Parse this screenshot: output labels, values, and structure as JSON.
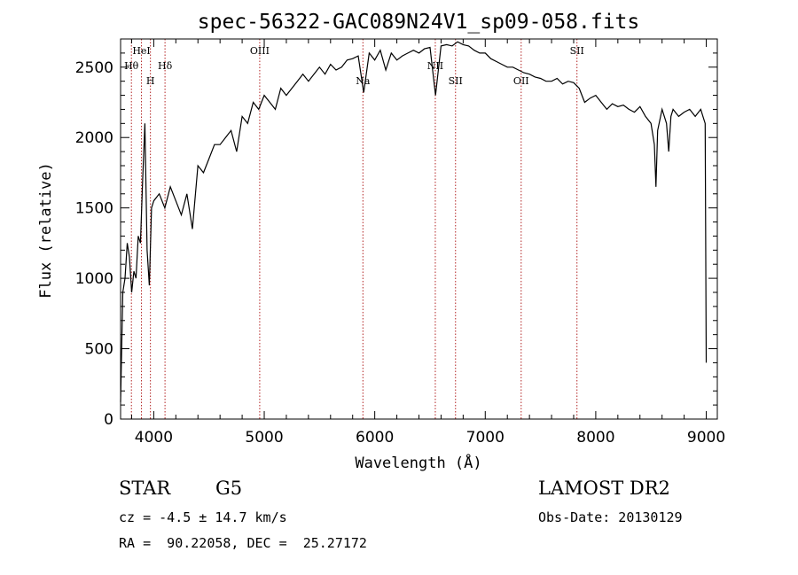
{
  "chart_data": {
    "type": "line",
    "title": "spec-56322-GAC089N24V1_sp09-058.fits",
    "xlabel": "Wavelength (Å)",
    "ylabel": "Flux (relative)",
    "xlim": [
      3700,
      9100
    ],
    "ylim": [
      0,
      2700
    ],
    "xticks": [
      4000,
      5000,
      6000,
      7000,
      8000,
      9000
    ],
    "yticks": [
      0,
      500,
      1000,
      1500,
      2000,
      2500
    ],
    "grid": false,
    "legend": "none",
    "series": [
      {
        "x": [
          3700,
          3720,
          3740,
          3760,
          3780,
          3800,
          3820,
          3840,
          3860,
          3880,
          3900,
          3920,
          3940,
          3960,
          3980,
          4000,
          4050,
          4100,
          4150,
          4200,
          4250,
          4300,
          4350,
          4400,
          4450,
          4500,
          4550,
          4600,
          4650,
          4700,
          4750,
          4800,
          4850,
          4900,
          4950,
          5000,
          5050,
          5100,
          5150,
          5200,
          5250,
          5300,
          5350,
          5400,
          5450,
          5500,
          5550,
          5600,
          5650,
          5700,
          5750,
          5800,
          5850,
          5900,
          5950,
          6000,
          6050,
          6100,
          6150,
          6200,
          6250,
          6300,
          6350,
          6400,
          6450,
          6500,
          6550,
          6600,
          6650,
          6700,
          6750,
          6800,
          6850,
          6900,
          6950,
          7000,
          7050,
          7100,
          7150,
          7200,
          7250,
          7300,
          7350,
          7400,
          7450,
          7500,
          7550,
          7600,
          7650,
          7700,
          7750,
          7800,
          7850,
          7900,
          7950,
          8000,
          8050,
          8100,
          8150,
          8200,
          8250,
          8300,
          8350,
          8400,
          8450,
          8500,
          8530,
          8545,
          8560,
          8600,
          8640,
          8660,
          8680,
          8700,
          8750,
          8800,
          8850,
          8900,
          8950,
          8970,
          8990,
          9000
        ],
        "values": [
          120,
          900,
          1000,
          1250,
          1150,
          900,
          1050,
          1000,
          1300,
          1250,
          1700,
          2100,
          1200,
          950,
          1500,
          1550,
          1600,
          1500,
          1650,
          1550,
          1450,
          1600,
          1350,
          1800,
          1750,
          1850,
          1950,
          1950,
          2000,
          2050,
          1900,
          2150,
          2100,
          2250,
          2200,
          2300,
          2250,
          2200,
          2350,
          2300,
          2350,
          2400,
          2450,
          2400,
          2450,
          2500,
          2450,
          2520,
          2480,
          2500,
          2550,
          2560,
          2580,
          2320,
          2600,
          2550,
          2620,
          2480,
          2600,
          2550,
          2580,
          2600,
          2620,
          2600,
          2630,
          2640,
          2300,
          2650,
          2660,
          2650,
          2680,
          2660,
          2650,
          2620,
          2600,
          2600,
          2560,
          2540,
          2520,
          2500,
          2500,
          2480,
          2460,
          2450,
          2430,
          2420,
          2400,
          2400,
          2420,
          2380,
          2400,
          2390,
          2350,
          2250,
          2280,
          2300,
          2250,
          2200,
          2240,
          2220,
          2230,
          2200,
          2180,
          2220,
          2150,
          2100,
          1950,
          1650,
          2050,
          2200,
          2100,
          1900,
          2150,
          2200,
          2150,
          2180,
          2200,
          2150,
          2200,
          2150,
          2100,
          400
        ]
      }
    ],
    "spectral_lines": [
      {
        "label": "Hθ",
        "x": 3798,
        "row": 2
      },
      {
        "label": "HeI",
        "x": 3889,
        "row": 1
      },
      {
        "label": "H",
        "x": 3970,
        "row": 3
      },
      {
        "label": "Hδ",
        "x": 4102,
        "row": 2
      },
      {
        "label": "OIII",
        "x": 4959,
        "row": 1
      },
      {
        "label": "Na",
        "x": 5893,
        "row": 3
      },
      {
        "label": "NII",
        "x": 6548,
        "row": 2
      },
      {
        "label": "SII",
        "x": 6731,
        "row": 3
      },
      {
        "label": "OII",
        "x": 7325,
        "row": 3
      },
      {
        "label": "SII",
        "x": 7830,
        "row": 1
      }
    ]
  },
  "info": {
    "class_label": "STAR",
    "subclass_label": "G5",
    "survey": "LAMOST DR2",
    "redshift_line": "cz = -4.5 ± 14.7 km/s",
    "obs_date": "Obs-Date: 20130129",
    "coords": "RA =  90.22058, DEC =  25.27172"
  },
  "colors": {
    "line": "#000000",
    "marker_lines": "#b22222"
  }
}
